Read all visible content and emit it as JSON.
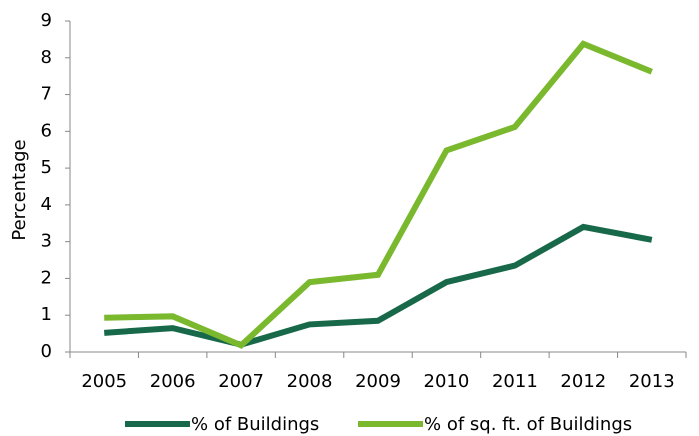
{
  "chart_data": {
    "type": "line",
    "y_label": "Percentage",
    "categories": [
      "2005",
      "2006",
      "2007",
      "2008",
      "2009",
      "2010",
      "2011",
      "2012",
      "2013"
    ],
    "series": [
      {
        "name": "% of Buildings",
        "color": "#17694a",
        "values": [
          0.52,
          0.65,
          0.2,
          0.75,
          0.85,
          1.9,
          2.35,
          3.4,
          3.05
        ]
      },
      {
        "name": "% of sq. ft. of Buildings",
        "color": "#7ab82e",
        "values": [
          0.93,
          0.97,
          0.18,
          1.9,
          2.1,
          5.48,
          6.12,
          8.38,
          7.62
        ]
      }
    ],
    "ylim": [
      0,
      9
    ],
    "yticks": [
      0,
      1,
      2,
      3,
      4,
      5,
      6,
      7,
      8,
      9
    ],
    "grid": false,
    "legend": "bottom"
  }
}
